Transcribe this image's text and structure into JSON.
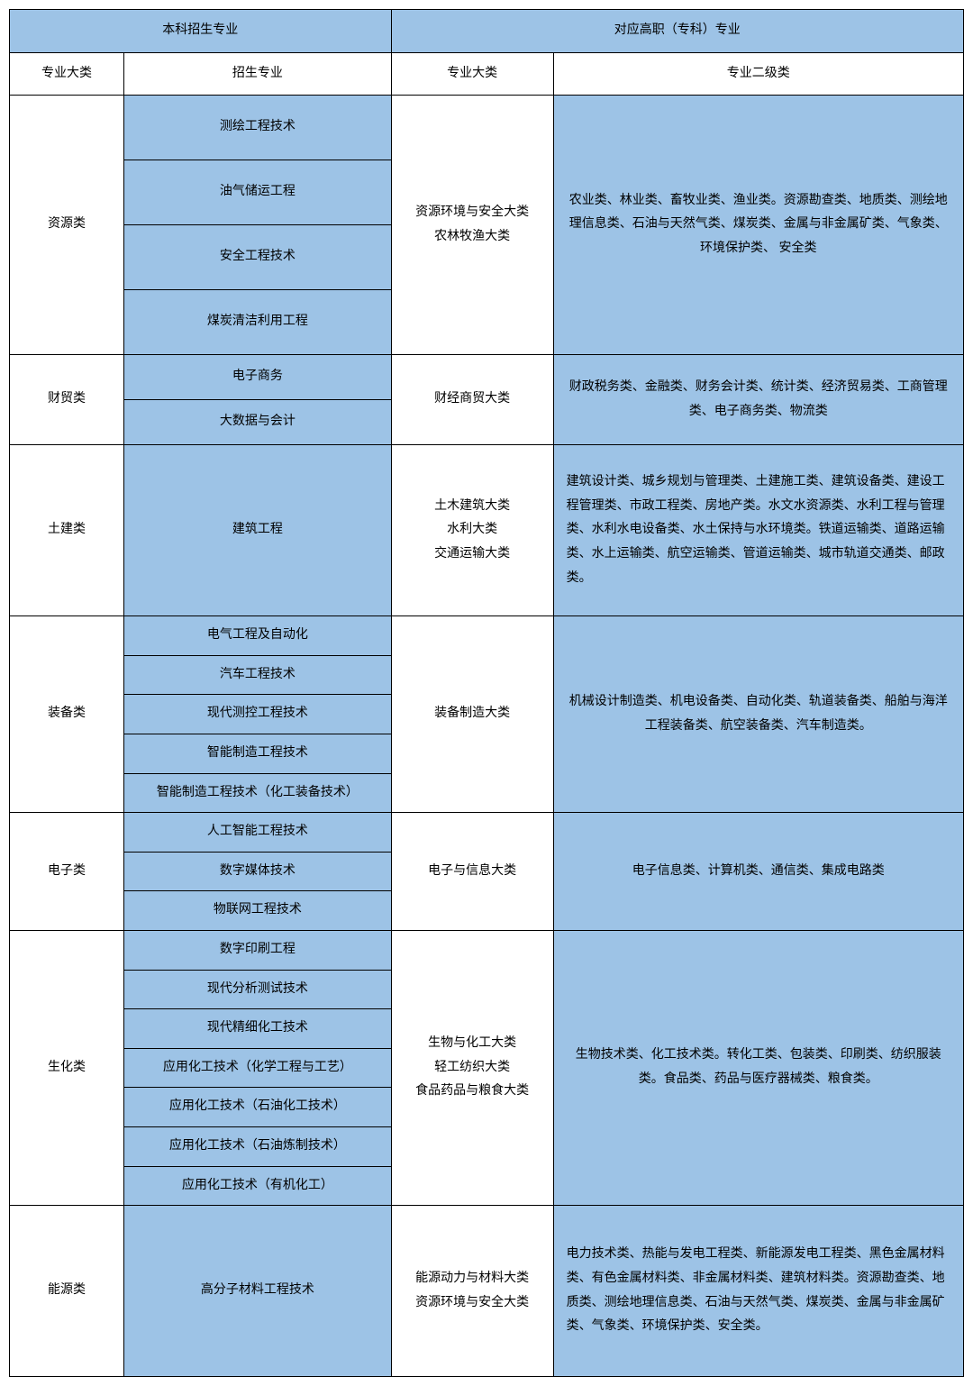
{
  "styling": {
    "type": "table",
    "header_bg": "#9dc3e6",
    "blue_cell_bg": "#9dc3e6",
    "white_cell_bg": "#ffffff",
    "border_color": "#000000",
    "font_family": "SimSun",
    "font_size": 14,
    "line_height": 1.9,
    "col_widths_pct": [
      12,
      28,
      17,
      43
    ]
  },
  "headers": {
    "top_left": "本科招生专业",
    "top_right": "对应高职（专科）专业",
    "sub1": "专业大类",
    "sub2": "招生专业",
    "sub3": "专业大类",
    "sub4": "专业二级类"
  },
  "rows": [
    {
      "category": "资源类",
      "majors": [
        "测绘工程技术",
        "油气储运工程",
        "安全工程技术",
        "煤炭清洁利用工程"
      ],
      "corr_category": "资源环境与安全大类\n农林牧渔大类",
      "corr_desc": "农业类、林业类、畜牧业类、渔业类。资源勘查类、地质类、测绘地理信息类、石油与天然气类、煤炭类、金属与非金属矿类、气象类、环境保护类、 安全类",
      "row_height": "tall-cell",
      "desc_align": "center-text"
    },
    {
      "category": "财贸类",
      "majors": [
        "电子商务",
        "大数据与会计"
      ],
      "corr_category": "财经商贸大类",
      "corr_desc": "财政税务类、金融类、财务会计类、统计类、经济贸易类、工商管理类、电子商务类、物流类",
      "row_height": "med-cell",
      "desc_align": "center-text"
    },
    {
      "category": "土建类",
      "majors": [
        "建筑工程"
      ],
      "corr_category": "土木建筑大类\n水利大类\n交通运输大类",
      "corr_desc": "建筑设计类、城乡规划与管理类、土建施工类、建筑设备类、建设工程管理类、市政工程类、房地产类。水文水资源类、水利工程与管理类、水利水电设备类、水土保持与水环境类。铁道运输类、道路运输类、水上运输类、航空运输类、管道运输类、城市轨道交通类、邮政类。",
      "row_height": "xtall-cell",
      "desc_align": "desc-text"
    },
    {
      "category": "装备类",
      "majors": [
        "电气工程及自动化",
        "汽车工程技术",
        "现代测控工程技术",
        "智能制造工程技术",
        "智能制造工程技术（化工装备技术）"
      ],
      "corr_category": "装备制造大类",
      "corr_desc": "机械设计制造类、机电设备类、自动化类、轨道装备类、船舶与海洋工程装备类、航空装备类、汽车制造类。",
      "row_height": "short-cell",
      "desc_align": "center-text"
    },
    {
      "category": "电子类",
      "majors": [
        "人工智能工程技术",
        "数字媒体技术",
        "物联网工程技术"
      ],
      "corr_category": "电子与信息大类",
      "corr_desc": "电子信息类、计算机类、通信类、集成电路类",
      "row_height": "short-cell",
      "desc_align": "center-text"
    },
    {
      "category": "生化类",
      "majors": [
        "数字印刷工程",
        "现代分析测试技术",
        "现代精细化工技术",
        "应用化工技术（化学工程与工艺）",
        "应用化工技术（石油化工技术）",
        "应用化工技术（石油炼制技术）",
        "应用化工技术（有机化工）"
      ],
      "corr_category": "生物与化工大类\n轻工纺织大类\n食品药品与粮食大类",
      "corr_desc": "生物技术类、化工技术类。转化工类、包装类、印刷类、纺织服装类。食品类、药品与医疗器械类、粮食类。",
      "row_height": "short-cell",
      "desc_align": "center-text"
    },
    {
      "category": "能源类",
      "majors": [
        "高分子材料工程技术"
      ],
      "corr_category": "能源动力与材料大类\n资源环境与安全大类",
      "corr_desc": "电力技术类、热能与发电工程类、新能源发电工程类、黑色金属材料类、有色金属材料类、非金属材料类、建筑材料类。资源勘查类、地质类、测绘地理信息类、石油与天然气类、煤炭类、金属与非金属矿类、气象类、环境保护类、安全类。",
      "row_height": "xtall-cell",
      "desc_align": "desc-text"
    }
  ]
}
